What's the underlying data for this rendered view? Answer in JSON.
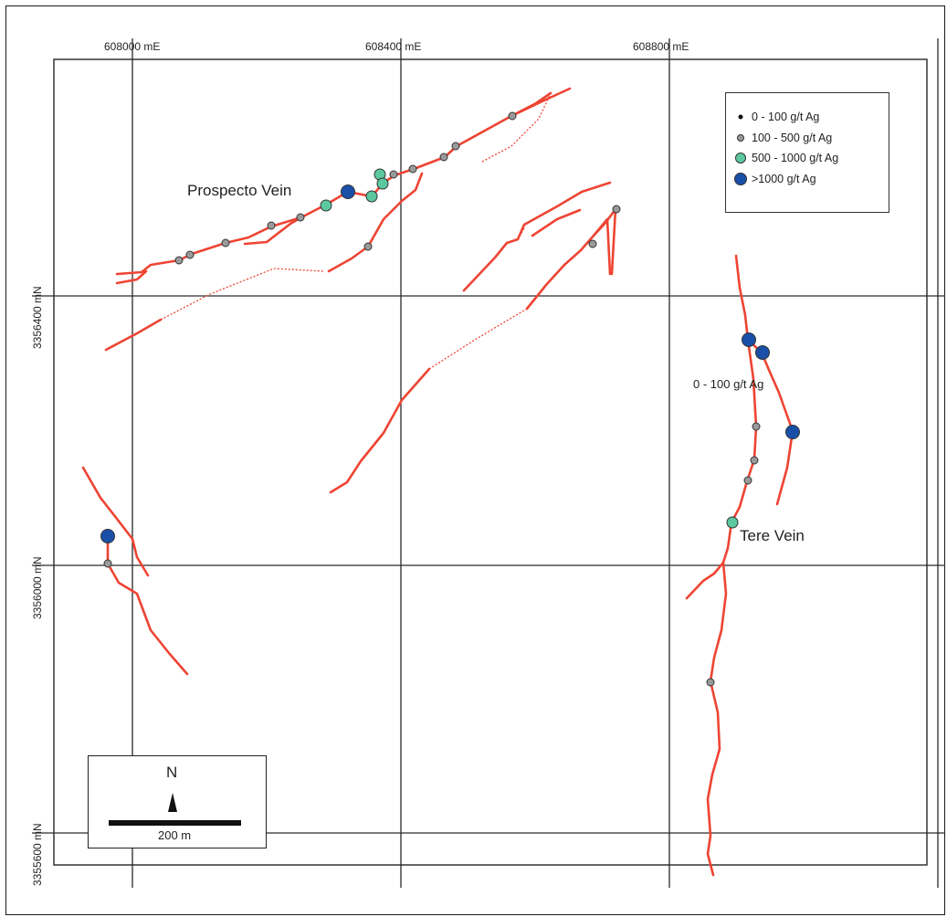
{
  "grid": {
    "easting_labels": [
      "608000 mE",
      "608400 mE",
      "608800 mE"
    ],
    "northing_labels": [
      "3356400 mN",
      "3356000 mN",
      "3355600 mN"
    ]
  },
  "veins": {
    "prospecto": "Prospecto Vein",
    "tere": "Tere Vein",
    "annotation": "0 - 100 g/t Ag"
  },
  "legend": {
    "items": [
      {
        "label": "0 - 100 g/t Ag",
        "symbol": "black-dot"
      },
      {
        "label": "100 - 500 g/t Ag",
        "symbol": "gray-circle"
      },
      {
        "label": "500 - 1000 g/t Ag",
        "symbol": "green-circle"
      },
      {
        "label": ">1000 g/t Ag",
        "symbol": "blue-circle"
      }
    ]
  },
  "scale": {
    "north": "N",
    "distance": "200 m"
  },
  "colors": {
    "vein": "#ee4433",
    "gray_sample": "#9a9a9a",
    "green_sample": "#5cc8a0",
    "blue_sample": "#1a4fa8",
    "grid": "#2a2a2a"
  }
}
